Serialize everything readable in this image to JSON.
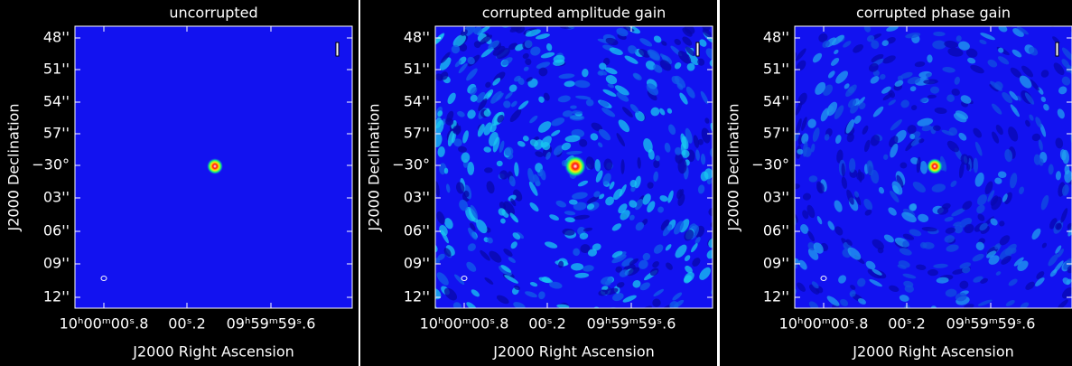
{
  "panels": [
    {
      "title": "uncorrupted",
      "x_label": "J2000 Right Ascension",
      "y_label": "J2000 Declination",
      "y_ticks": [
        "48''",
        "51''",
        "54''",
        "57''",
        "−30°",
        "03''",
        "06''",
        "09''",
        "12''"
      ],
      "x_ticks": [
        "10ʰ00ᵐ00ˢ.8",
        "00ˢ.2",
        "09ʰ59ᵐ59ˢ.6"
      ]
    },
    {
      "title": "corrupted amplitude gain",
      "x_label": "J2000 Right Ascension",
      "y_label": "J2000 Declination",
      "y_ticks": [
        "48''",
        "51''",
        "54''",
        "57''",
        "−30°",
        "03''",
        "06''",
        "09''",
        "12''"
      ],
      "x_ticks": [
        "10ʰ00ᵐ00ˢ.8",
        "00ˢ.2",
        "09ʰ59ᵐ59ˢ.6"
      ]
    },
    {
      "title": "corrupted phase gain",
      "x_label": "J2000 Right Ascension",
      "y_label": "J2000 Declination",
      "y_ticks": [
        "48''",
        "51''",
        "54''",
        "57''",
        "−30°",
        "03''",
        "06''",
        "09''",
        "12''"
      ],
      "x_ticks": [
        "10ʰ00ᵐ00ˢ.8",
        "00ˢ.2",
        "09ʰ59ᵐ59ˢ.6"
      ]
    }
  ]
}
